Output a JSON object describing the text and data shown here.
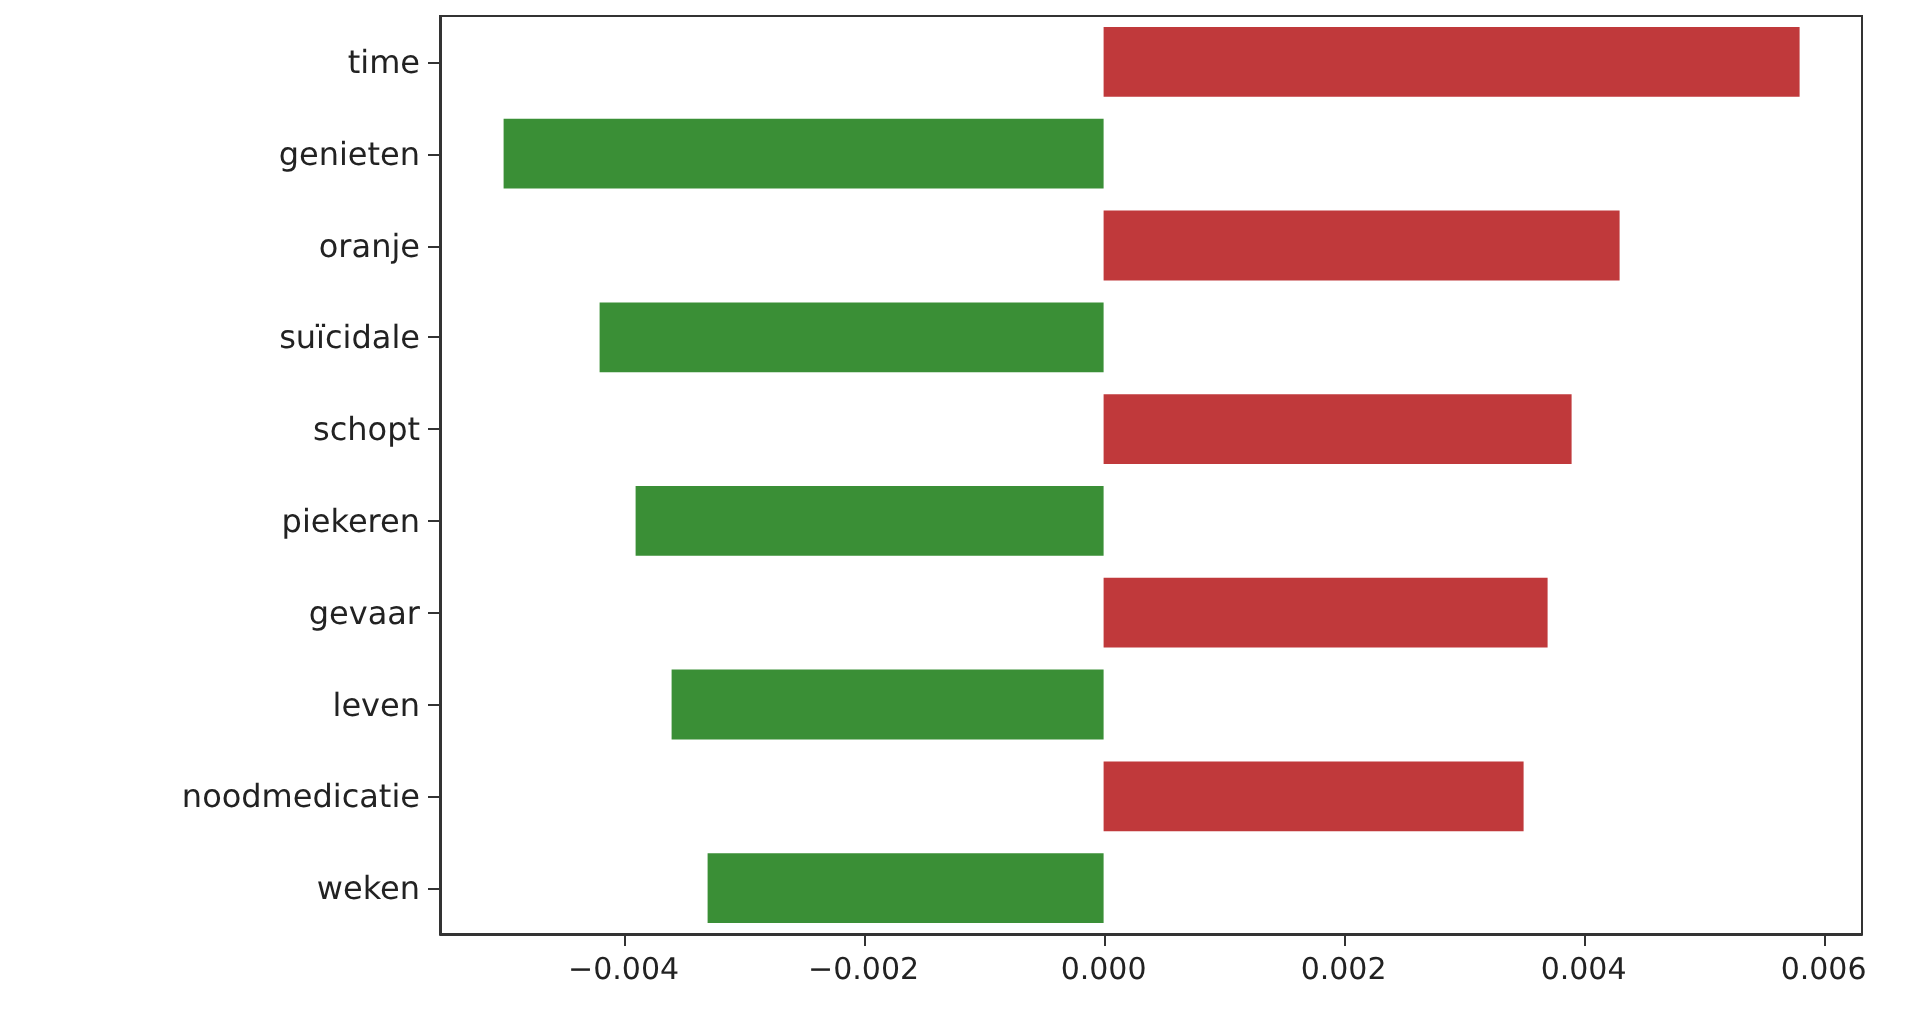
{
  "chart_data": {
    "type": "bar",
    "orientation": "horizontal",
    "categories": [
      "time",
      "genieten",
      "oranje",
      "suïcidale",
      "schopt",
      "piekeren",
      "gevaar",
      "leven",
      "noodmedicatie",
      "weken"
    ],
    "values": [
      0.0058,
      -0.005,
      0.0043,
      -0.0042,
      0.0039,
      -0.0039,
      0.0037,
      -0.0036,
      0.0035,
      -0.0033
    ],
    "colors": [
      "#c0393b",
      "#3a8f36",
      "#c0393b",
      "#3a8f36",
      "#c0393b",
      "#3a8f36",
      "#c0393b",
      "#3a8f36",
      "#c0393b",
      "#3a8f36"
    ],
    "xlim": [
      -0.00553,
      0.00632
    ],
    "xticks": [
      {
        "value": -0.004,
        "label": "−0.004"
      },
      {
        "value": -0.002,
        "label": "−0.002"
      },
      {
        "value": 0,
        "label": "0.000"
      },
      {
        "value": 0.002,
        "label": "0.002"
      },
      {
        "value": 0.004,
        "label": "0.004"
      },
      {
        "value": 0.006,
        "label": "0.006"
      }
    ],
    "grid": false
  }
}
